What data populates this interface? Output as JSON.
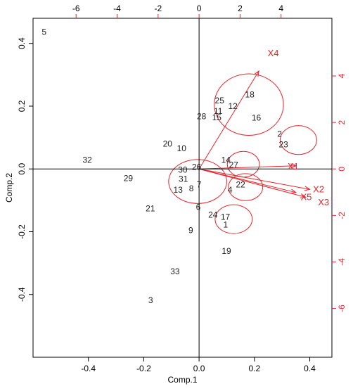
{
  "chart_data": {
    "type": "scatter",
    "subtype": "biplot",
    "xlabel": "Comp.1",
    "ylabel": "Comp.2",
    "xlim": [
      -0.6,
      0.48
    ],
    "ylim": [
      -0.6,
      0.48
    ],
    "x_ticks": [
      "-0.4",
      "-0.2",
      "0.0",
      "0.2",
      "0.4"
    ],
    "x_tick_values": [
      -0.4,
      -0.2,
      0.0,
      0.2,
      0.4
    ],
    "y_ticks": [
      "-0.4",
      "-0.2",
      "0.0",
      "0.2",
      "0.4"
    ],
    "y_tick_values": [
      -0.4,
      -0.2,
      0.0,
      0.2,
      0.4
    ],
    "top_ticks": [
      "-6",
      "-4",
      "-2",
      "0",
      "2",
      "4"
    ],
    "top_tick_values": [
      -6,
      -4,
      -2,
      0,
      2,
      4
    ],
    "right_ticks": [
      "-6",
      "-4",
      "-2",
      "0",
      "2",
      "4"
    ],
    "right_tick_values": [
      -6,
      -4,
      -2,
      0,
      2,
      4
    ],
    "secondary_scale": 13.5,
    "colors": {
      "variables": "#e8242c",
      "observations": "#222222",
      "axes": "#000000"
    },
    "observations": [
      {
        "label": "1",
        "x": 0.096,
        "y": -0.178
      },
      {
        "label": "2",
        "x": 0.291,
        "y": 0.111
      },
      {
        "label": "3",
        "x": -0.175,
        "y": -0.419
      },
      {
        "label": "4",
        "x": 0.112,
        "y": -0.067
      },
      {
        "label": "5",
        "x": -0.56,
        "y": 0.436
      },
      {
        "label": "6",
        "x": -0.003,
        "y": -0.122
      },
      {
        "label": "7",
        "x": 0.0,
        "y": -0.05
      },
      {
        "label": "8",
        "x": -0.028,
        "y": -0.062
      },
      {
        "label": "9",
        "x": -0.03,
        "y": -0.196
      },
      {
        "label": "10",
        "x": -0.063,
        "y": 0.065
      },
      {
        "label": "11",
        "x": 0.069,
        "y": 0.184
      },
      {
        "label": "12",
        "x": 0.122,
        "y": 0.2
      },
      {
        "label": "13",
        "x": -0.076,
        "y": -0.067
      },
      {
        "label": "14",
        "x": 0.097,
        "y": 0.028
      },
      {
        "label": "15",
        "x": 0.064,
        "y": 0.164
      },
      {
        "label": "16",
        "x": 0.207,
        "y": 0.163
      },
      {
        "label": "17",
        "x": 0.095,
        "y": -0.153
      },
      {
        "label": "18",
        "x": 0.183,
        "y": 0.237
      },
      {
        "label": "19",
        "x": 0.099,
        "y": -0.262
      },
      {
        "label": "20",
        "x": -0.114,
        "y": 0.08
      },
      {
        "label": "21",
        "x": -0.176,
        "y": -0.126
      },
      {
        "label": "22",
        "x": 0.15,
        "y": -0.05
      },
      {
        "label": "23",
        "x": 0.305,
        "y": 0.078
      },
      {
        "label": "24",
        "x": 0.05,
        "y": -0.146
      },
      {
        "label": "25",
        "x": 0.074,
        "y": 0.218
      },
      {
        "label": "26",
        "x": -0.009,
        "y": 0.006
      },
      {
        "label": "27",
        "x": 0.125,
        "y": 0.013
      },
      {
        "label": "28",
        "x": 0.009,
        "y": 0.167
      },
      {
        "label": "29",
        "x": -0.256,
        "y": -0.03
      },
      {
        "label": "30",
        "x": -0.059,
        "y": -0.003
      },
      {
        "label": "31",
        "x": -0.057,
        "y": -0.032
      },
      {
        "label": "32",
        "x": -0.404,
        "y": 0.029
      },
      {
        "label": "33",
        "x": -0.087,
        "y": -0.327
      }
    ],
    "variables": [
      {
        "label": "X1",
        "x": 0.35,
        "y": 0.01,
        "label_x": 0.34,
        "label_y": 0.01
      },
      {
        "label": "X2",
        "x": 0.4,
        "y": -0.065,
        "label_x": 0.432,
        "label_y": -0.063
      },
      {
        "label": "X3",
        "x": 0.385,
        "y": -0.09,
        "label_x": 0.45,
        "label_y": -0.105
      },
      {
        "label": "X4",
        "x": 0.216,
        "y": 0.312,
        "label_x": 0.268,
        "label_y": 0.37
      },
      {
        "label": "X5",
        "x": 0.35,
        "y": -0.075,
        "label_x": 0.387,
        "label_y": -0.088
      }
    ],
    "ellipses": [
      {
        "cx": -0.005,
        "cy": -0.04,
        "rx": 0.105,
        "ry": 0.07
      },
      {
        "cx": 0.18,
        "cy": 0.205,
        "rx": 0.125,
        "ry": 0.098
      },
      {
        "cx": 0.359,
        "cy": 0.092,
        "rx": 0.066,
        "ry": 0.046
      },
      {
        "cx": 0.16,
        "cy": 0.015,
        "rx": 0.058,
        "ry": 0.041
      },
      {
        "cx": 0.168,
        "cy": -0.058,
        "rx": 0.062,
        "ry": 0.043
      },
      {
        "cx": 0.125,
        "cy": -0.16,
        "rx": 0.067,
        "ry": 0.046
      }
    ]
  }
}
